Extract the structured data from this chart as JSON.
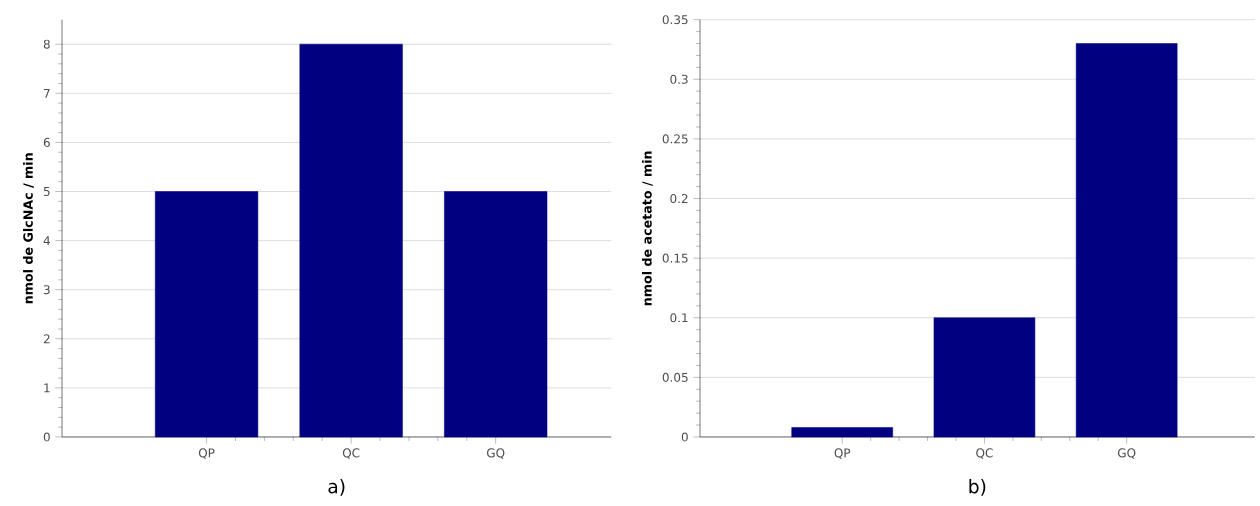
{
  "chart_data": [
    {
      "type": "bar",
      "categories": [
        "QP",
        "QC",
        "GQ"
      ],
      "values": [
        5,
        8,
        5
      ],
      "color": "#000080",
      "ylabel": "nmol de GlcNAc / min",
      "ylim": [
        0,
        8.5
      ],
      "yticks": [
        0,
        1,
        2,
        3,
        4,
        5,
        6,
        7,
        8
      ],
      "grid": "y",
      "annotations": [
        "a)"
      ]
    },
    {
      "type": "bar",
      "categories": [
        "QP",
        "QC",
        "GQ"
      ],
      "values": [
        0.008,
        0.1,
        0.33
      ],
      "color": "#000080",
      "ylabel": "nmol de acetato / min",
      "ylim": [
        0,
        0.35
      ],
      "yticks": [
        0,
        0.05,
        0.1,
        0.15,
        0.2,
        0.25,
        0.3,
        0.35
      ],
      "grid": "y",
      "annotations": [
        "b)"
      ]
    }
  ]
}
